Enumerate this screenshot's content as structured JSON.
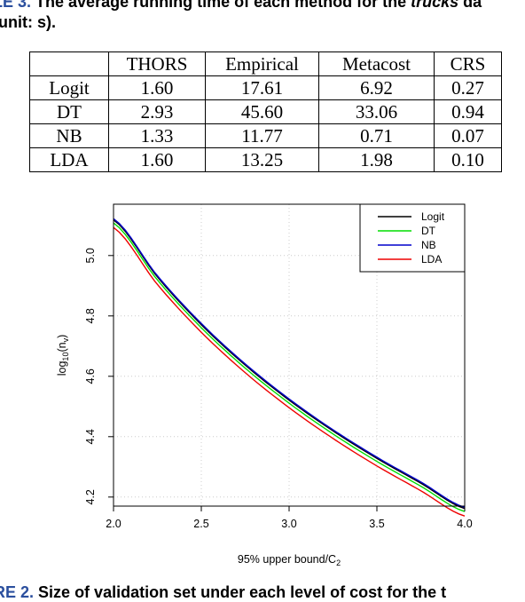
{
  "table_caption": {
    "label": "LE 3.",
    "text_before": "The average running time of each method for the",
    "italic": "trucks",
    "text_after": "da",
    "line2": "(unit: s)."
  },
  "runtime_table": {
    "columns": [
      "THORS",
      "Empirical",
      "Metacost",
      "CRS"
    ],
    "rows": [
      {
        "method": "Logit",
        "values": [
          "1.60",
          "17.61",
          "6.92",
          "0.27"
        ]
      },
      {
        "method": "DT",
        "values": [
          "2.93",
          "45.60",
          "33.06",
          "0.94"
        ]
      },
      {
        "method": "NB",
        "values": [
          "1.33",
          "11.77",
          "0.71",
          "0.07"
        ]
      },
      {
        "method": "LDA",
        "values": [
          "1.60",
          "13.25",
          "1.98",
          "0.10"
        ]
      }
    ]
  },
  "chart_data": {
    "type": "line",
    "xlabel": "95% upper bound/C",
    "xlabel_sub": "2",
    "ylabel": "log",
    "ylabel_sub1": "10",
    "ylabel_mid": "(n",
    "ylabel_sub2": "v",
    "ylabel_end": ")",
    "xlim": [
      2.0,
      4.0
    ],
    "ylim": [
      4.17,
      5.17
    ],
    "x_ticks": [
      "2.0",
      "2.5",
      "3.0",
      "3.5",
      "4.0"
    ],
    "y_ticks": [
      "4.2",
      "4.4",
      "4.6",
      "4.8",
      "5.0"
    ],
    "grid": true,
    "legend_position": "top-right",
    "x": [
      2.0,
      2.25,
      2.5,
      2.75,
      3.0,
      3.25,
      3.5,
      3.75,
      4.0
    ],
    "series": [
      {
        "name": "Logit",
        "color": "#000000",
        "values": [
          5.118,
          4.929,
          4.771,
          4.637,
          4.521,
          4.419,
          4.328,
          4.246,
          4.162
        ]
      },
      {
        "name": "DT",
        "color": "#00dd00",
        "values": [
          5.108,
          4.919,
          4.761,
          4.627,
          4.511,
          4.409,
          4.318,
          4.236,
          4.152
        ]
      },
      {
        "name": "NB",
        "color": "#0000cc",
        "values": [
          5.122,
          4.933,
          4.775,
          4.641,
          4.525,
          4.423,
          4.332,
          4.25,
          4.166
        ]
      },
      {
        "name": "LDA",
        "color": "#ee0000",
        "values": [
          5.093,
          4.904,
          4.746,
          4.612,
          4.496,
          4.394,
          4.303,
          4.221,
          4.137
        ]
      }
    ]
  },
  "figure_caption": {
    "label": "IRE 2.",
    "text": "Size of validation set under each level of cost for the t"
  }
}
